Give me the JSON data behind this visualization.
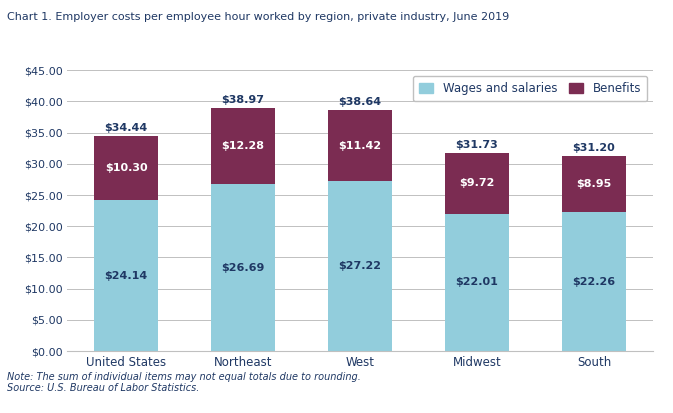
{
  "title": "Chart 1. Employer costs per employee hour worked by region, private industry, June 2019",
  "categories": [
    "United States",
    "Northeast",
    "West",
    "Midwest",
    "South"
  ],
  "wages": [
    24.14,
    26.69,
    27.22,
    22.01,
    22.26
  ],
  "benefits": [
    10.3,
    12.28,
    11.42,
    9.72,
    8.95
  ],
  "totals": [
    34.44,
    38.97,
    38.64,
    31.73,
    31.2
  ],
  "wages_color": "#92CDDC",
  "benefits_color": "#7B2C52",
  "ylabel_ticks": [
    0.0,
    5.0,
    10.0,
    15.0,
    20.0,
    25.0,
    30.0,
    35.0,
    40.0,
    45.0
  ],
  "ylim": [
    0,
    47
  ],
  "note": "Note: The sum of individual items may not equal totals due to rounding.\nSource: U.S. Bureau of Labor Statistics.",
  "legend_wages": "Wages and salaries",
  "legend_benefits": "Benefits",
  "title_color": "#1F3864",
  "axis_label_color": "#1F3864",
  "note_color": "#1F3864",
  "background_color": "#FFFFFF",
  "grid_color": "#C0C0C0"
}
